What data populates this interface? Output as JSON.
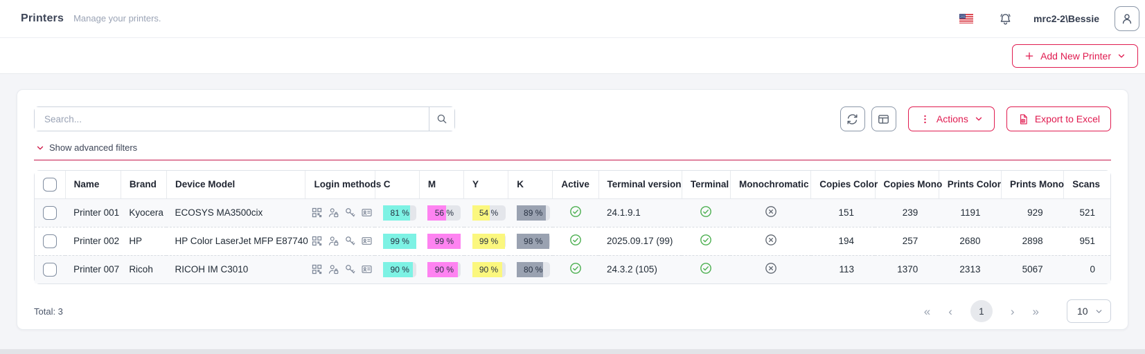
{
  "header": {
    "title": "Printers",
    "subtitle": "Manage your printers.",
    "username": "mrc2-2\\Bessie",
    "language_flag": "us-flag-icon"
  },
  "toolbar": {
    "add_label": "Add New Printer"
  },
  "card": {
    "search_placeholder": "Search...",
    "actions_label": "Actions",
    "export_label": "Export to Excel",
    "filters_label": "Show advanced filters"
  },
  "table": {
    "columns": [
      "Name",
      "Brand",
      "Device Model",
      "Login methods",
      "C",
      "M",
      "Y",
      "K",
      "Active",
      "Terminal version",
      "Terminal",
      "Monochromatic",
      "Copies Color",
      "Copies Mono",
      "Prints Color",
      "Prints Mono",
      "Scans"
    ],
    "rows": [
      {
        "name": "Printer 001",
        "brand": "Kyocera",
        "model": "ECOSYS MA3500cix",
        "login_methods": [
          "qr-code",
          "user-lock",
          "key",
          "id-card"
        ],
        "toner": {
          "c": 81,
          "m": 56,
          "y": 54,
          "k": 89
        },
        "toner_labels": {
          "c": "81 %",
          "m": "56 %",
          "y": "54 %",
          "k": "89 %"
        },
        "active": true,
        "terminal_version": "24.1.9.1",
        "terminal": true,
        "monochromatic": false,
        "copies_color": "151",
        "copies_mono": "239",
        "prints_color": "1191",
        "prints_mono": "929",
        "scans": "521"
      },
      {
        "name": "Printer 002",
        "brand": "HP",
        "model": "HP Color LaserJet MFP E87740",
        "login_methods": [
          "qr-code",
          "user-lock",
          "key",
          "id-card"
        ],
        "toner": {
          "c": 99,
          "m": 99,
          "y": 99,
          "k": 98
        },
        "toner_labels": {
          "c": "99 %",
          "m": "99 %",
          "y": "99 %",
          "k": "98 %"
        },
        "active": true,
        "terminal_version": "2025.09.17 (99)",
        "terminal": true,
        "monochromatic": false,
        "copies_color": "194",
        "copies_mono": "257",
        "prints_color": "2680",
        "prints_mono": "2898",
        "scans": "951"
      },
      {
        "name": "Printer 007",
        "brand": "Ricoh",
        "model": "RICOH IM C3010",
        "login_methods": [
          "qr-code",
          "user-lock",
          "key",
          "id-card"
        ],
        "toner": {
          "c": 90,
          "m": 90,
          "y": 90,
          "k": 80
        },
        "toner_labels": {
          "c": "90 %",
          "m": "90 %",
          "y": "90 %",
          "k": "80 %"
        },
        "active": true,
        "terminal_version": "24.3.2 (105)",
        "terminal": true,
        "monochromatic": false,
        "copies_color": "113",
        "copies_mono": "1370",
        "prints_color": "2313",
        "prints_mono": "5067",
        "scans": "0"
      }
    ]
  },
  "footer": {
    "total_label": "Total: 3",
    "page": "1",
    "page_size": "10",
    "nav": {
      "first": "«",
      "prev": "‹",
      "next": "›",
      "last": "»"
    }
  },
  "colors": {
    "accent": "#e01a4f",
    "toner_c": "#7df2e4",
    "toner_m": "#fe83f1",
    "toner_y": "#fbf77e",
    "toner_k": "#9aa2b1",
    "badge_track": "#e4e6eb",
    "success_green": "#4caf50",
    "inactive_gray": "#5f6670"
  }
}
